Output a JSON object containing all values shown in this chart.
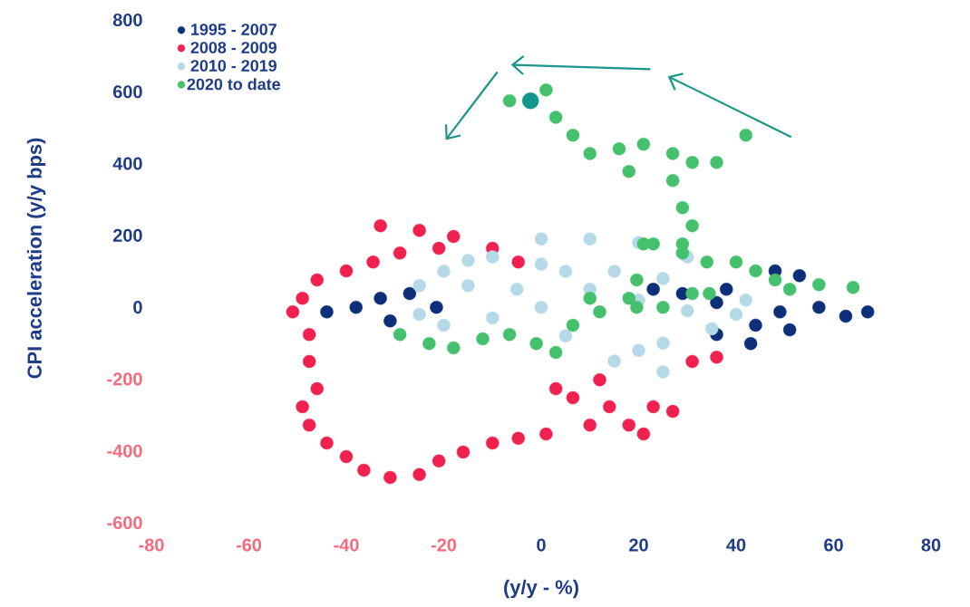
{
  "chart_data": {
    "type": "scatter",
    "xlabel": "(y/y - %)",
    "ylabel": "CPI acceleration (y/y bps)",
    "xlim": [
      -80,
      80
    ],
    "ylim": [
      -600,
      800
    ],
    "xticks": [
      -80,
      -60,
      -40,
      -20,
      0,
      20,
      40,
      60,
      80
    ],
    "yticks": [
      -600,
      -400,
      -200,
      0,
      200,
      400,
      600,
      800
    ],
    "grid": false,
    "legend": "top left",
    "marker": "circle",
    "series": [
      {
        "name": "1995 - 2007",
        "color": "#0d2f7a",
        "x": [
          -44,
          -38,
          -33,
          -27,
          -21.5,
          -31,
          23,
          29,
          36,
          38,
          48,
          53,
          36,
          44,
          49,
          57,
          62.5,
          67,
          51,
          43
        ],
        "values": [
          -13,
          0,
          25,
          38,
          0,
          -38,
          50,
          38,
          13,
          50,
          101,
          88,
          -76,
          -50,
          -13,
          0,
          -25,
          -13,
          -63,
          -101
        ]
      },
      {
        "name": "2008 - 2009",
        "color": "#f0214f",
        "x": [
          -33,
          -25,
          -18,
          -10,
          -4.7,
          -21,
          -29,
          -34.5,
          -40,
          -46,
          -49,
          -51,
          -47.6,
          -47.6,
          -46,
          -49,
          -47.6,
          -44,
          -40,
          -36.4,
          -31,
          -25,
          -21,
          -16,
          -10,
          -4.7,
          1,
          3,
          6.5,
          12,
          14,
          18,
          21,
          23,
          27,
          31,
          36,
          10
        ],
        "values": [
          227,
          214,
          197,
          164,
          126,
          164,
          151,
          126,
          101,
          76,
          25,
          -13,
          -76,
          -151,
          -227,
          -277,
          -328,
          -378,
          -416,
          -454,
          -474,
          -466,
          -428,
          -403,
          -378,
          -365,
          -353,
          -227,
          -252,
          -202,
          -277,
          -328,
          -353,
          -277,
          -290,
          -151,
          -139,
          -328
        ]
      },
      {
        "name": "2010 - 2019",
        "color": "#b5d9e6",
        "x": [
          -25,
          -20,
          -15,
          -10,
          0,
          10,
          20,
          30,
          -25,
          -20,
          -10,
          0,
          10,
          20,
          30,
          35,
          25,
          15,
          25,
          5,
          15,
          -5,
          5,
          20,
          42,
          40,
          -15,
          0,
          25
        ],
        "values": [
          60,
          100,
          130,
          140,
          190,
          190,
          180,
          140,
          -20,
          -50,
          -30,
          0,
          50,
          20,
          -10,
          -60,
          -100,
          -150,
          -180,
          100,
          100,
          50,
          -80,
          -120,
          20,
          -20,
          60,
          120,
          80
        ]
      },
      {
        "name": "2020 to date",
        "color": "#45c16d",
        "x": [
          -6.5,
          1,
          3,
          6.5,
          10,
          16,
          21,
          27,
          31,
          36,
          42,
          18,
          27,
          29,
          31,
          29,
          23,
          21,
          29,
          34,
          40,
          44,
          48,
          51,
          57,
          64,
          31,
          34.5,
          -29,
          -23,
          -18,
          -12,
          -6.5,
          -1,
          3,
          6.5,
          12,
          19.6,
          25,
          18,
          10,
          19.6
        ],
        "values": [
          575,
          605,
          529,
          479,
          428,
          441,
          454,
          428,
          403,
          403,
          479,
          378,
          353,
          277,
          227,
          176,
          176,
          176,
          151,
          126,
          126,
          101,
          76,
          50,
          63,
          55,
          38,
          38,
          -76,
          -101,
          -113,
          -88,
          -76,
          -101,
          -126,
          -50,
          -13,
          0,
          0,
          25,
          25,
          76
        ]
      },
      {
        "color": "#14968a",
        "x": [
          -2.2
        ],
        "values": [
          575
        ]
      }
    ]
  }
}
